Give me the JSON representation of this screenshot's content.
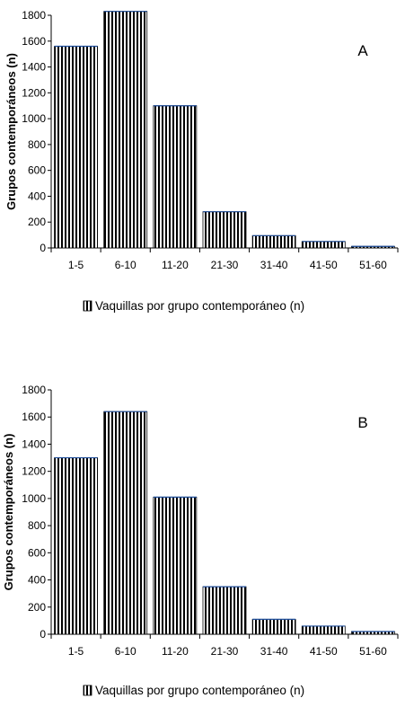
{
  "chart_data": [
    {
      "type": "bar",
      "panel_label": "A",
      "categories": [
        "1-5",
        "6-10",
        "11-20",
        "21-30",
        "31-40",
        "41-50",
        "51-60"
      ],
      "values": [
        1560,
        1830,
        1100,
        280,
        95,
        50,
        12
      ],
      "ylabel": "Grupos contemporáneos (n)",
      "ylim": [
        0,
        1800
      ],
      "yticks": [
        "0",
        "200",
        "400",
        "600",
        "800",
        "1000",
        "1200",
        "1400",
        "1600",
        "1800"
      ],
      "legend": "Vaquillas por grupo contemporáneo (n)",
      "legend_position": "bottom",
      "grid": false
    },
    {
      "type": "bar",
      "panel_label": "B",
      "categories": [
        "1-5",
        "6-10",
        "11-20",
        "21-30",
        "31-40",
        "41-50",
        "51-60"
      ],
      "values": [
        1300,
        1640,
        1010,
        350,
        110,
        60,
        20
      ],
      "ylabel": "Grupos contemporáneos (n)",
      "ylim": [
        0,
        1800
      ],
      "yticks": [
        "0",
        "200",
        "400",
        "600",
        "800",
        "1000",
        "1200",
        "1400",
        "1600",
        "1800"
      ],
      "legend": "Vaquillas por grupo contemporáneo (n)",
      "legend_position": "bottom",
      "grid": false
    }
  ],
  "style": {
    "bar_stroke": "#000000",
    "bar_stroke_top": "#1f4e9a",
    "axis_color": "#000000"
  }
}
